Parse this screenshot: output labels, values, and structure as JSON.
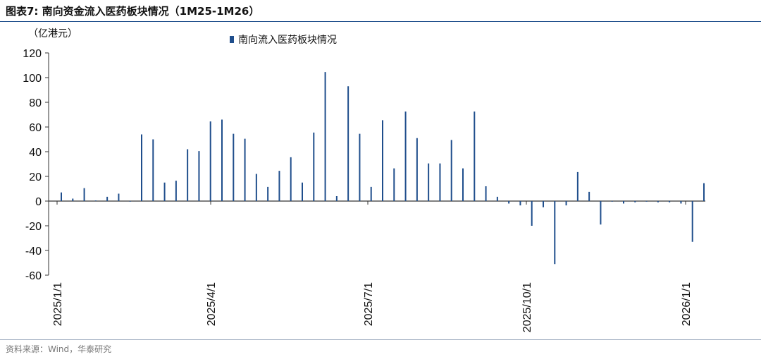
{
  "header": {
    "title": "图表7:   南向资金流入医药板块情况（1M25-1M26）"
  },
  "footer": {
    "source": "资料来源：Wind，华泰研究"
  },
  "colors": {
    "bar": "#1f4e8c",
    "axis": "#333333",
    "rule": "#1f4e8c"
  },
  "chart_data": {
    "type": "bar",
    "title": "",
    "ylabel": "（亿港元）",
    "xlabel": "",
    "ylim": [
      -60,
      120
    ],
    "yticks": [
      120,
      100,
      80,
      60,
      40,
      20,
      0,
      -20,
      -40,
      -60
    ],
    "grid": false,
    "legend": "top-center",
    "xtick_labels": [
      "2025/1/1",
      "2025/4/1",
      "2025/7/1",
      "2025/10/1",
      "2026/1/1"
    ],
    "series": [
      {
        "name": "南向流入医药板块情况",
        "values": [
          7,
          2,
          10.5,
          0.5,
          3.5,
          6,
          0,
          54,
          50,
          15,
          16.5,
          42,
          40.5,
          64.5,
          66,
          54.5,
          50.5,
          22,
          11.5,
          24.5,
          35.5,
          15,
          55.5,
          104.5,
          4,
          93,
          54.5,
          11.5,
          65.5,
          26.5,
          72.5,
          51,
          30.5,
          30.5,
          49.5,
          26.5,
          72.5,
          12,
          3.5,
          -2,
          -3.5,
          -20,
          -5,
          -51,
          -3.5,
          23.5,
          7.5,
          -19,
          0,
          -2,
          -1,
          0,
          -1,
          -1,
          -2,
          -33,
          14.5
        ]
      }
    ]
  }
}
